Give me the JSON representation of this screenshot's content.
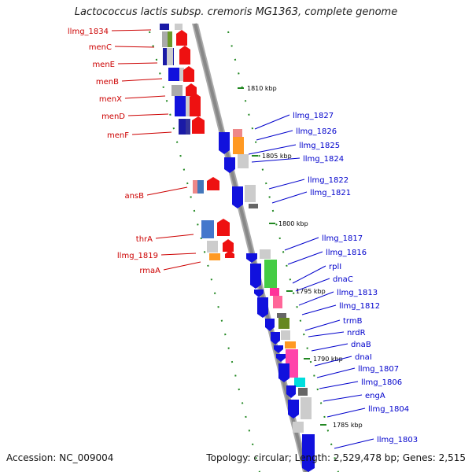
{
  "title": "Lactococcus lactis subsp. cremoris MG1363, complete genome",
  "footer": {
    "accession": "Accession: NC_009004",
    "topology": "Topology: circular; Length: 2,529,478 bp; Genes: 2,515"
  },
  "colors": {
    "left_label": "#cc0000",
    "right_label": "#0000cc",
    "tick": "#228822",
    "backbone": "#888888"
  },
  "kbp_labels": [
    "1810 kbp",
    "1805 kbp",
    "1800 kbp",
    "1795 kbp",
    "1790 kbp",
    "1785 kbp"
  ],
  "left_genes": [
    "llmg_1834",
    "menC",
    "menE",
    "menB",
    "menX",
    "menD",
    "menF",
    "ansB",
    "thrA",
    "llmg_1819",
    "rmaA"
  ],
  "right_genes": [
    "llmg_1827",
    "llmg_1826",
    "llmg_1825",
    "llmg_1824",
    "llmg_1822",
    "llmg_1821",
    "llmg_1817",
    "llmg_1816",
    "rplI",
    "dnaC",
    "llmg_1813",
    "llmg_1812",
    "trmB",
    "nrdR",
    "dnaB",
    "dnaI",
    "llmg_1807",
    "llmg_1806",
    "engA",
    "llmg_1804",
    "llmg_1803"
  ]
}
